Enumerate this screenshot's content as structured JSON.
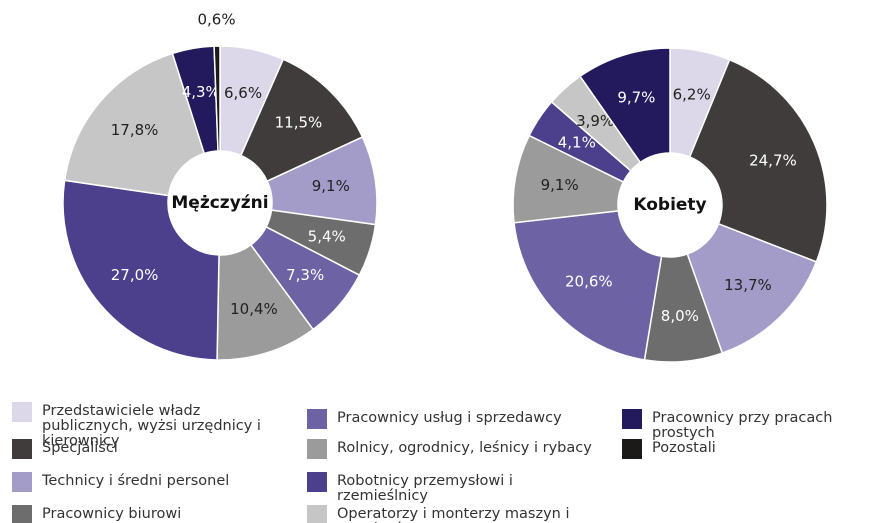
{
  "chart_data": {
    "type": "pie",
    "categories": [
      "Przedstawiciele władz publicznych, wyżsi urzędnicy i kierownicy",
      "Specjaliści",
      "Technicy i średni personel",
      "Pracownicy biurowi",
      "Pracownicy usług i sprzedawcy",
      "Rolnicy, ogrodnicy, leśnicy i rybacy",
      "Robotnicy przemysłowi i rzemieślnicy",
      "Operatorzy i monterzy maszyn i urządzeń",
      "Pracownicy przy pracach prostych",
      "Pozostali"
    ],
    "colors": [
      "#dcd8ea",
      "#403c3c",
      "#a39cc9",
      "#6e6d6d",
      "#6c62a4",
      "#9b9b9b",
      "#4c3f8c",
      "#c6c6c6",
      "#231a5e",
      "#1c1a18"
    ],
    "series": [
      {
        "name": "Mężczyźni",
        "values": [
          6.6,
          11.5,
          9.1,
          5.4,
          7.3,
          10.4,
          27.0,
          17.8,
          4.3,
          0.6
        ],
        "value_labels": [
          "6,6%",
          "11,5%",
          "9,1%",
          "5,4%",
          "7,3%",
          "10,4%",
          "27,0%",
          "17,8%",
          "4,3%",
          "0,6%"
        ]
      },
      {
        "name": "Kobiety",
        "values": [
          6.2,
          24.7,
          13.7,
          8.0,
          20.6,
          9.1,
          4.1,
          3.9,
          9.7,
          null
        ],
        "value_labels": [
          "6,2%",
          "24,7%",
          "13,7%",
          "8,0%",
          "20,6%",
          "9,1%",
          "4,1%",
          "3,9%",
          "9,7%",
          null
        ]
      }
    ]
  }
}
